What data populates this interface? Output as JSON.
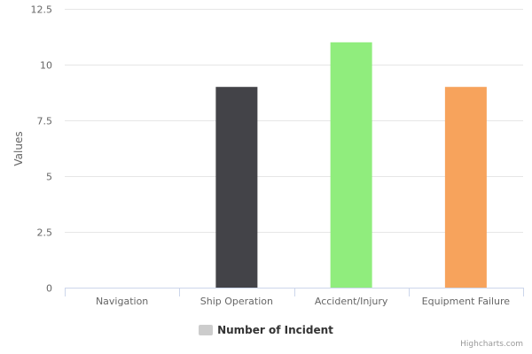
{
  "chart_data": {
    "type": "bar",
    "categories": [
      "Navigation",
      "Ship Operation",
      "Accident/Injury",
      "Equipment Failure"
    ],
    "series": [
      {
        "name": "Number of Incident",
        "values": [
          0,
          9,
          11,
          9
        ],
        "colors": [
          "#7cb5ec",
          "#434348",
          "#90ed7d",
          "#f7a35c"
        ]
      }
    ],
    "ylabel": "Values",
    "ylim": [
      0,
      12.5
    ],
    "yticks": [
      0,
      2.5,
      5,
      7.5,
      10,
      12.5
    ],
    "ytick_labels": [
      "0",
      "2.5",
      "5",
      "7.5",
      "10",
      "12.5"
    ],
    "grid": true,
    "legend_position": "bottom-center",
    "legend_swatch_color": "#cccccc"
  },
  "credits": "Highcharts.com"
}
